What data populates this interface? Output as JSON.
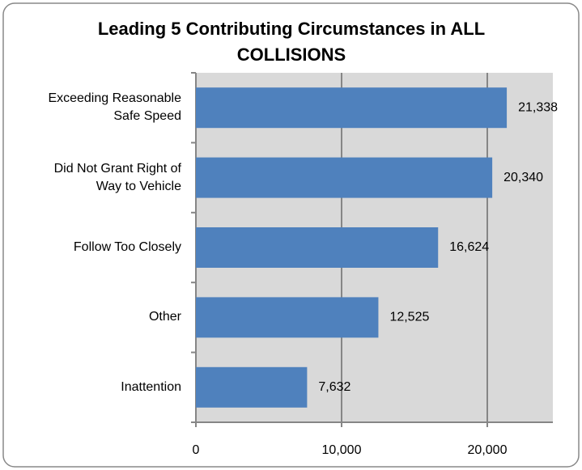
{
  "chart_data": {
    "type": "bar",
    "orientation": "horizontal",
    "title": "Leading 5 Contributing Circumstances in ALL COLLISIONS",
    "categories": [
      "Exceeding Reasonable Safe Speed",
      "Did Not Grant Right of Way to Vehicle",
      "Follow Too Closely",
      "Other",
      "Inattention"
    ],
    "values": [
      21338,
      20340,
      16624,
      12525,
      7632
    ],
    "value_labels": [
      "21,338",
      "20,340",
      "16,624",
      "12,525",
      "7,632"
    ],
    "color": "#4f81bd",
    "xlim": [
      0,
      24500
    ],
    "xticks": [
      0,
      {
        "value": 10000,
        "label": "10,000"
      },
      {
        "value": 20000,
        "label": "20,000"
      }
    ],
    "grid": true
  }
}
